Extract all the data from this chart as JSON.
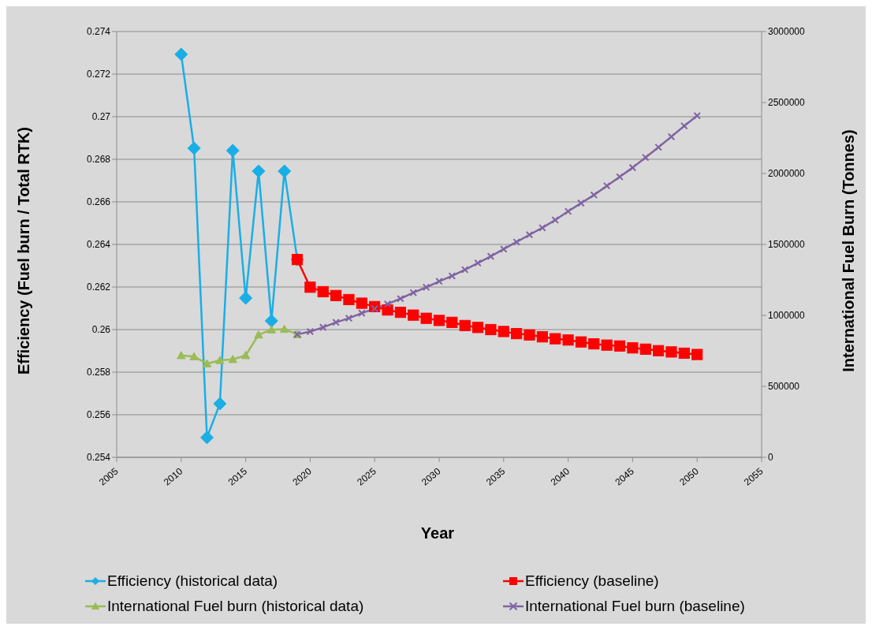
{
  "chart_data": {
    "type": "line",
    "xlabel": "Year",
    "ylabel": "Efficiency (Fuel burn / Total RTK)",
    "y2label": "International Fuel Burn (Tonnes)",
    "xlim": [
      2005,
      2055
    ],
    "xticks": [
      2005,
      2010,
      2015,
      2020,
      2025,
      2030,
      2035,
      2040,
      2045,
      2050,
      2055
    ],
    "ylim": [
      0.254,
      0.274
    ],
    "yticks": [
      0.254,
      0.256,
      0.258,
      0.26,
      0.262,
      0.264,
      0.266,
      0.268,
      0.27,
      0.272,
      0.274
    ],
    "y2lim": [
      0,
      3000000
    ],
    "y2ticks": [
      0,
      500000,
      1000000,
      1500000,
      2000000,
      2500000,
      3000000
    ],
    "grid": "y",
    "legend": "bottom",
    "line_style": "solid",
    "series": [
      {
        "name": "Efficiency (historical data)",
        "color": "#1aaee6",
        "marker": "diamond",
        "x": [
          2010,
          2011,
          2012,
          2013,
          2014,
          2015,
          2016,
          2017,
          2018,
          2019
        ],
        "values": [
          0.27293,
          0.26852,
          0.25493,
          0.25652,
          0.26841,
          0.26148,
          0.26744,
          0.26041,
          0.26744,
          0.26329
        ]
      },
      {
        "name": "Efficiency (baseline)",
        "color": "#ff0000",
        "marker": "square",
        "x": [
          2019,
          2020,
          2021,
          2022,
          2023,
          2024,
          2025,
          2026,
          2027,
          2028,
          2029,
          2030,
          2031,
          2032,
          2033,
          2034,
          2035,
          2036,
          2037,
          2038,
          2039,
          2040,
          2041,
          2042,
          2043,
          2044,
          2045,
          2046,
          2047,
          2048,
          2049,
          2050
        ],
        "values": [
          0.26329,
          0.26199,
          0.26178,
          0.2616,
          0.26141,
          0.26124,
          0.26108,
          0.26092,
          0.26081,
          0.26068,
          0.26053,
          0.26043,
          0.26034,
          0.26019,
          0.2601,
          0.26,
          0.25991,
          0.25981,
          0.25975,
          0.25966,
          0.25957,
          0.25951,
          0.25942,
          0.25933,
          0.25927,
          0.25923,
          0.25914,
          0.25908,
          0.25901,
          0.25895,
          0.25889,
          0.25883
        ]
      },
      {
        "name": "International Fuel burn (historical data)",
        "color": "#9bbb59",
        "marker": "triangle",
        "axis": "y2",
        "x": [
          2010,
          2011,
          2012,
          2013,
          2014,
          2015,
          2016,
          2017,
          2018,
          2019
        ],
        "values": [
          718000,
          710000,
          660000,
          683000,
          690000,
          718000,
          863000,
          899000,
          903000,
          866000
        ]
      },
      {
        "name": "International Fuel burn (baseline)",
        "color": "#8064a2",
        "marker": "cross",
        "axis": "y2",
        "x": [
          2019,
          2020,
          2021,
          2022,
          2023,
          2024,
          2025,
          2026,
          2027,
          2028,
          2029,
          2030,
          2031,
          2032,
          2033,
          2034,
          2035,
          2036,
          2037,
          2038,
          2039,
          2040,
          2041,
          2042,
          2043,
          2044,
          2045,
          2046,
          2047,
          2048,
          2049,
          2050
        ],
        "values": [
          866000,
          886000,
          916000,
          951000,
          980000,
          1016000,
          1047000,
          1080000,
          1118000,
          1160000,
          1198000,
          1240000,
          1278000,
          1322000,
          1369000,
          1416000,
          1467000,
          1517000,
          1568000,
          1617000,
          1672000,
          1733000,
          1791000,
          1848000,
          1913000,
          1976000,
          2041000,
          2113000,
          2185000,
          2259000,
          2335000,
          2407000
        ]
      }
    ]
  }
}
